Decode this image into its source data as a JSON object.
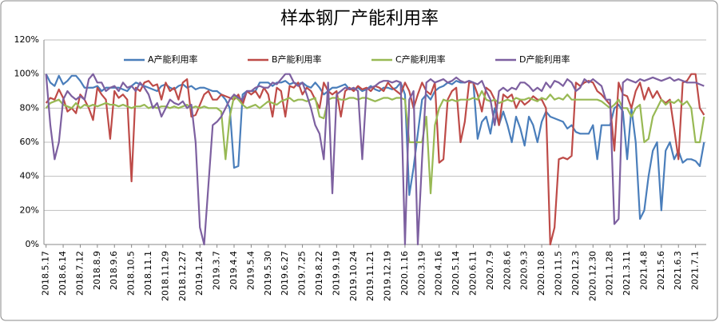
{
  "chart_data": {
    "type": "line",
    "title": "样本钢厂产能利用率",
    "categories": [
      "2018.5.17",
      null,
      null,
      null,
      "2018.6.14",
      null,
      null,
      null,
      "2018.7.12",
      null,
      null,
      null,
      "2018.8.9",
      null,
      null,
      null,
      "2018.9.6",
      null,
      null,
      null,
      "2018.10.5",
      null,
      null,
      null,
      "2018.11.1",
      null,
      null,
      null,
      "2018.11.29",
      null,
      null,
      null,
      "2018.12.27",
      null,
      null,
      null,
      "2019.1.24",
      null,
      null,
      null,
      "2019.3.7",
      null,
      null,
      null,
      "2019.4.4",
      null,
      null,
      null,
      "2019.5.4",
      null,
      null,
      null,
      "2019.5.30",
      null,
      null,
      null,
      "2019.6.27",
      null,
      null,
      null,
      "2019.7.25",
      null,
      null,
      null,
      "2019.8.22",
      null,
      null,
      null,
      "2019.9.19",
      null,
      null,
      null,
      "2019.10.24",
      null,
      null,
      null,
      "2019.11.21",
      null,
      null,
      null,
      "2019.12.19",
      null,
      null,
      null,
      "2020.1.16",
      null,
      null,
      null,
      "2020.3.19",
      null,
      null,
      null,
      "2020.4.16",
      null,
      null,
      null,
      "2020.5.14",
      null,
      null,
      null,
      "2020.6.11",
      null,
      null,
      null,
      "2020.7.9",
      null,
      null,
      null,
      "2020.8.6",
      null,
      null,
      null,
      "2020.9.3",
      null,
      null,
      null,
      "2020.10.8",
      null,
      null,
      null,
      "2020.11.5",
      null,
      null,
      null,
      "2020.12.3",
      null,
      null,
      null,
      "2020.12.30",
      null,
      null,
      null,
      "2021.1.28",
      null,
      null,
      null,
      "2021.3.11",
      null,
      null,
      null,
      "2021.4.8",
      null,
      null,
      null,
      "2021.5.6",
      null,
      null,
      null,
      "2021.6.3",
      null,
      null,
      null,
      "2021.7.1",
      null,
      null
    ],
    "series": [
      {
        "name": "A产能利用率",
        "color": "#4a7ebb",
        "values": [
          100,
          95,
          93,
          99,
          94,
          96,
          99,
          99,
          96,
          92,
          92,
          92,
          93,
          90,
          92,
          92,
          92,
          92,
          91,
          90,
          93,
          95,
          94,
          93,
          92,
          91,
          90,
          93,
          94,
          92,
          91,
          93,
          94,
          92,
          93,
          91,
          92,
          92,
          91,
          90,
          90,
          88,
          85,
          80,
          45,
          46,
          88,
          90,
          90,
          90,
          95,
          95,
          95,
          93,
          95,
          95,
          96,
          94,
          95,
          94,
          95,
          93,
          92,
          95,
          92,
          88,
          90,
          92,
          92,
          93,
          94,
          91,
          91,
          92,
          90,
          91,
          93,
          91,
          90,
          92,
          92,
          91,
          92,
          95,
          88,
          29,
          45,
          65,
          85,
          88,
          85,
          90,
          92,
          93,
          95,
          94,
          96,
          95,
          95,
          96,
          95,
          62,
          72,
          75,
          65,
          80,
          70,
          78,
          70,
          60,
          75,
          68,
          58,
          75,
          70,
          60,
          72,
          78,
          75,
          74,
          73,
          72,
          68,
          70,
          66,
          65,
          65,
          65,
          70,
          50,
          70,
          70,
          70,
          80,
          82,
          78,
          50,
          80,
          60,
          15,
          20,
          40,
          55,
          60,
          20,
          55,
          60,
          50,
          55,
          48,
          50,
          50,
          49,
          46,
          60
        ]
      },
      {
        "name": "B产能利用率",
        "color": "#be4b48",
        "values": [
          83,
          86,
          85,
          91,
          86,
          78,
          80,
          77,
          88,
          85,
          80,
          73,
          92,
          88,
          85,
          62,
          90,
          86,
          88,
          85,
          37,
          92,
          90,
          95,
          96,
          93,
          94,
          85,
          95,
          90,
          92,
          85,
          95,
          97,
          75,
          76,
          82,
          88,
          90,
          85,
          85,
          88,
          87,
          86,
          85,
          88,
          82,
          90,
          88,
          90,
          86,
          92,
          88,
          75,
          92,
          90,
          75,
          93,
          92,
          95,
          88,
          92,
          90,
          85,
          80,
          95,
          90,
          88,
          90,
          75,
          90,
          92,
          90,
          93,
          91,
          92,
          90,
          93,
          92,
          90,
          95,
          92,
          90,
          88,
          95,
          90,
          80,
          88,
          95,
          90,
          88,
          95,
          48,
          50,
          85,
          90,
          92,
          60,
          72,
          95,
          95,
          88,
          78,
          92,
          90,
          85,
          70,
          88,
          86,
          88,
          80,
          85,
          82,
          84,
          87,
          85,
          85,
          80,
          0,
          10,
          50,
          51,
          50,
          52,
          95,
          93,
          95,
          96,
          95,
          90,
          88,
          85,
          82,
          55,
          95,
          88,
          87,
          80,
          90,
          95,
          85,
          92,
          86,
          90,
          85,
          83,
          85,
          68,
          50,
          95,
          96,
          100,
          100,
          80,
          76
        ]
      },
      {
        "name": "C产能利用率",
        "color": "#98b954",
        "values": [
          80,
          83,
          84,
          85,
          82,
          81,
          80,
          83,
          80,
          82,
          81,
          82,
          81,
          82,
          83,
          82,
          82,
          81,
          82,
          81,
          80,
          81,
          81,
          82,
          80,
          81,
          80,
          81,
          81,
          80,
          81,
          80,
          81,
          82,
          80,
          81,
          80,
          81,
          80,
          80,
          80,
          78,
          50,
          75,
          87,
          85,
          82,
          80,
          81,
          82,
          80,
          82,
          84,
          83,
          82,
          84,
          85,
          86,
          84,
          85,
          85,
          84,
          85,
          86,
          75,
          74,
          85,
          86,
          86,
          85,
          85,
          86,
          86,
          85,
          86,
          86,
          85,
          84,
          85,
          86,
          86,
          85,
          86,
          86,
          85,
          60,
          60,
          60,
          60,
          75,
          30,
          70,
          80,
          85,
          84,
          85,
          84,
          85,
          85,
          85,
          86,
          85,
          90,
          85,
          84,
          85,
          83,
          84,
          85,
          84,
          86,
          85,
          85,
          86,
          85,
          84,
          86,
          85,
          88,
          85,
          86,
          85,
          88,
          85,
          85,
          85,
          85,
          85,
          85,
          85,
          84,
          82,
          80,
          82,
          85,
          80,
          80,
          75,
          80,
          82,
          60,
          62,
          75,
          80,
          85,
          82,
          84,
          83,
          85,
          82,
          84,
          80,
          60,
          60,
          75
        ]
      },
      {
        "name": "D产能利用率",
        "color": "#7d60a0",
        "values": [
          100,
          70,
          50,
          60,
          85,
          90,
          87,
          85,
          87,
          85,
          97,
          100,
          95,
          95,
          90,
          92,
          93,
          90,
          95,
          92,
          93,
          90,
          95,
          92,
          88,
          80,
          83,
          75,
          80,
          85,
          83,
          82,
          84,
          80,
          82,
          60,
          10,
          0,
          35,
          70,
          72,
          75,
          80,
          85,
          88,
          86,
          85,
          90,
          90,
          92,
          93,
          92,
          92,
          95,
          94,
          97,
          100,
          100,
          95,
          93,
          95,
          88,
          80,
          70,
          65,
          50,
          95,
          30,
          88,
          90,
          92,
          91,
          92,
          90,
          50,
          91,
          92,
          93,
          95,
          96,
          96,
          95,
          96,
          95,
          0,
          85,
          90,
          0,
          50,
          95,
          97,
          95,
          96,
          97,
          95,
          96,
          98,
          96,
          95,
          96,
          95,
          94,
          96,
          90,
          85,
          70,
          90,
          92,
          90,
          92,
          91,
          95,
          95,
          93,
          90,
          92,
          90,
          95,
          92,
          96,
          95,
          93,
          97,
          95,
          90,
          92,
          97,
          95,
          97,
          95,
          93,
          85,
          85,
          12,
          15,
          95,
          97,
          96,
          95,
          97,
          96,
          97,
          98,
          97,
          96,
          97,
          98,
          96,
          97,
          96,
          95,
          95,
          95,
          94,
          93
        ]
      }
    ],
    "ylim": [
      0,
      120
    ],
    "yticks": [
      {
        "value": 0,
        "label": "0%"
      },
      {
        "value": 20,
        "label": "20%"
      },
      {
        "value": 40,
        "label": "40%"
      },
      {
        "value": 60,
        "label": "60%"
      },
      {
        "value": 80,
        "label": "80%"
      },
      {
        "value": 100,
        "label": "100%"
      },
      {
        "value": 120,
        "label": "120%"
      }
    ],
    "grid": true,
    "legend": "top"
  }
}
